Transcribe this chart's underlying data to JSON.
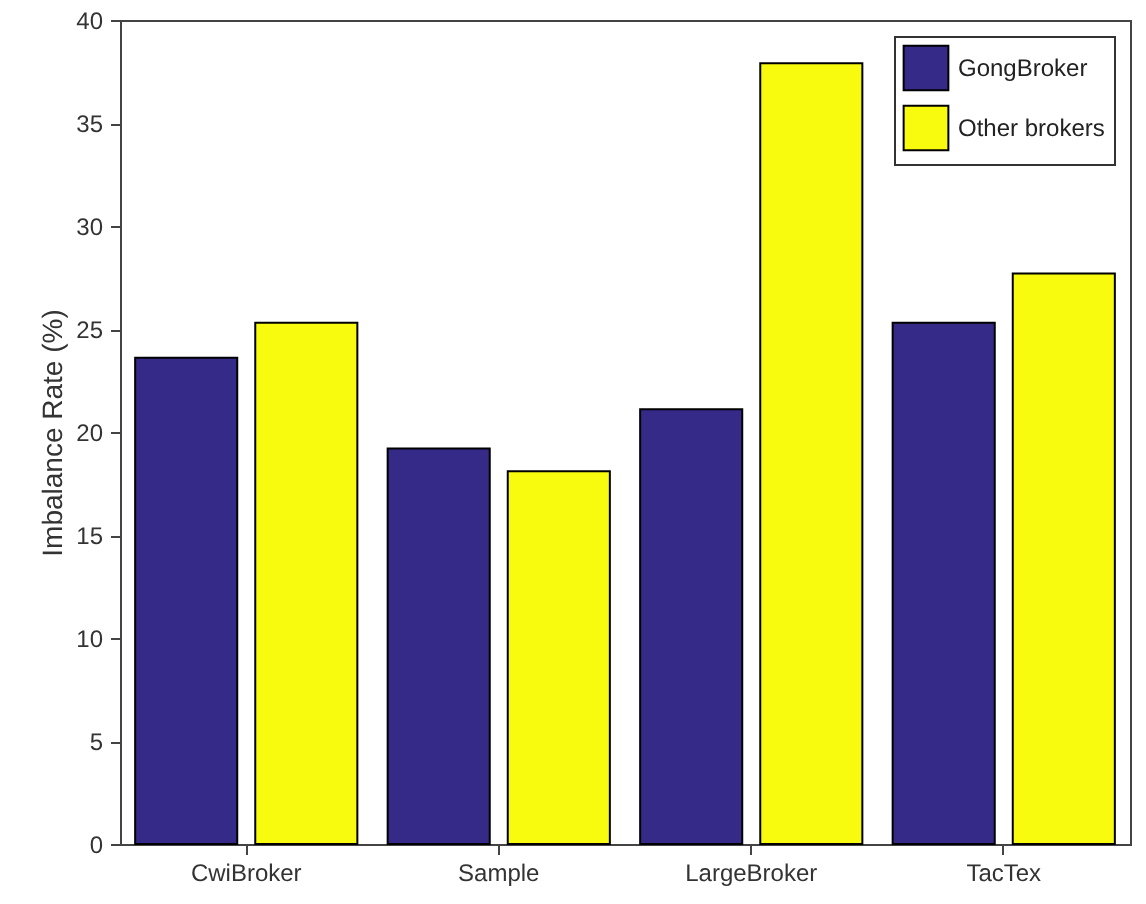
{
  "chart_data": {
    "type": "bar",
    "ylabel": "Imbalance Rate (%)",
    "categories": [
      "CwiBroker",
      "Sample",
      "LargeBroker",
      "TacTex"
    ],
    "series": [
      {
        "name": "GongBroker",
        "color": "#352a87",
        "values": [
          23.6,
          19.2,
          21.1,
          25.3
        ]
      },
      {
        "name": "Other brokers",
        "color": "#f9fb0e",
        "values": [
          25.3,
          18.1,
          37.9,
          27.7
        ]
      }
    ],
    "ylim": [
      0,
      40
    ],
    "yticks": [
      0,
      5,
      10,
      15,
      20,
      25,
      30,
      35,
      40
    ],
    "grid": false,
    "legend": "top right"
  }
}
